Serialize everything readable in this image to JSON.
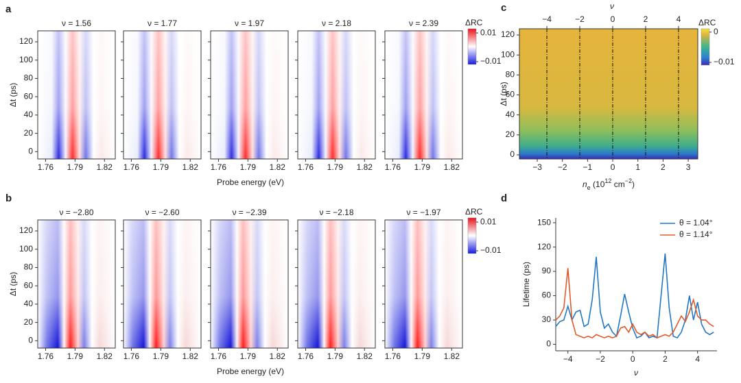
{
  "chart_data": [
    {
      "type": "heatmap",
      "panel": "a",
      "subplot_titles": [
        "ν = 1.56",
        "ν = 1.77",
        "ν = 1.97",
        "ν = 2.18",
        "ν = 2.39"
      ],
      "xlabel": "Probe energy (eV)",
      "ylabel": "Δt (ps)",
      "xlim": [
        1.752,
        1.831
      ],
      "xticks": [
        1.76,
        1.79,
        1.82
      ],
      "ylim": [
        -8,
        132
      ],
      "yticks": [
        0,
        20,
        40,
        60,
        80,
        100,
        120
      ],
      "colorbar": {
        "title": "ΔRC",
        "lim": [
          -0.0119,
          0.0129
        ],
        "ticks": [
          0.01,
          {
            "value": -0.01,
            "label": "−0.01"
          }
        ]
      }
    },
    {
      "type": "heatmap",
      "panel": "b",
      "subplot_titles": [
        "ν = −2.80",
        "ν = −2.60",
        "ν = −2.39",
        "ν = −2.18",
        "ν = −1.97"
      ],
      "xlabel": "Probe energy (eV)",
      "ylabel": "Δt (ps)",
      "xlim": [
        1.752,
        1.831
      ],
      "xticks": [
        1.76,
        1.79,
        1.82
      ],
      "ylim": [
        -8,
        132
      ],
      "yticks": [
        0,
        20,
        40,
        60,
        80,
        100,
        120
      ],
      "colorbar": {
        "title": "ΔRC",
        "lim": [
          -0.0119,
          0.0129
        ],
        "ticks": [
          0.01,
          {
            "value": -0.01,
            "label": "−0.01"
          }
        ]
      }
    },
    {
      "type": "density",
      "panel": "c",
      "xlabel_parts": [
        {
          "text": "n"
        },
        {
          "text": "e",
          "sub": true
        },
        {
          "text": " (10"
        },
        {
          "text": "12",
          "sup": true
        },
        {
          "text": " cm"
        },
        {
          "text": "−2",
          "sup": true
        },
        {
          "text": ")"
        }
      ],
      "x2label": "ν",
      "ylabel": "Δt (ps)",
      "xlim": [
        -3.71,
        3.38
      ],
      "xticks": [
        {
          "value": -3,
          "label": "−3"
        },
        {
          "value": -2,
          "label": "−2"
        },
        {
          "value": -1,
          "label": "−1"
        },
        0,
        1,
        2,
        3
      ],
      "x2lim": [
        -5.67,
        5.17
      ],
      "x2ticks": [
        {
          "value": -4,
          "label": "−4"
        },
        {
          "value": -2,
          "label": "−2"
        },
        0,
        2,
        4
      ],
      "ylim": [
        -4.1,
        126.2
      ],
      "yticks": [
        0,
        20,
        40,
        60,
        80,
        100,
        120
      ],
      "colorbar": {
        "title": "ΔRC",
        "lim": [
          -0.0109,
          0.0011
        ],
        "ticks": [
          0,
          {
            "value": -0.01,
            "label": "−0.01"
          }
        ]
      }
    },
    {
      "type": "line",
      "panel": "d",
      "xlabel": "ν",
      "ylabel": "Lifetime (ps)",
      "xlim": [
        -4.75,
        5.2
      ],
      "xticks": [
        {
          "value": -4,
          "label": "−4"
        },
        {
          "value": -2,
          "label": "−2"
        },
        0,
        2,
        4
      ],
      "ylim": [
        -8,
        156
      ],
      "yticks": [
        0,
        30,
        60,
        90,
        120,
        150
      ],
      "legend": "upper right",
      "x": [
        -4.75,
        -4.5,
        -4.25,
        -4,
        -3.75,
        -3.5,
        -3.25,
        -3,
        -2.75,
        -2.5,
        -2.25,
        -2,
        -1.75,
        -1.5,
        -1.25,
        -1,
        -0.75,
        -0.5,
        -0.25,
        0,
        0.25,
        0.5,
        0.75,
        1,
        1.25,
        1.5,
        1.75,
        2,
        2.25,
        2.5,
        2.75,
        3,
        3.25,
        3.5,
        3.75,
        4,
        4.25,
        4.5,
        4.75,
        5
      ],
      "series": [
        {
          "name": "θ = 1.04°",
          "color": "#1f77c4",
          "values": [
            22,
            28,
            30,
            47,
            30,
            40,
            42,
            22,
            25,
            55,
            108,
            40,
            20,
            25,
            15,
            10,
            35,
            62,
            40,
            20,
            8,
            10,
            15,
            8,
            10,
            8,
            60,
            112,
            45,
            10,
            8,
            15,
            30,
            60,
            30,
            52,
            25,
            15,
            12,
            15
          ]
        },
        {
          "name": "θ = 1.14°",
          "color": "#e0592a",
          "values": [
            30,
            35,
            45,
            94,
            30,
            12,
            10,
            8,
            10,
            8,
            12,
            10,
            8,
            10,
            8,
            10,
            20,
            22,
            15,
            25,
            15,
            12,
            15,
            10,
            12,
            8,
            10,
            12,
            10,
            15,
            25,
            35,
            28,
            40,
            55,
            35,
            30,
            30,
            25,
            22
          ]
        }
      ]
    }
  ]
}
